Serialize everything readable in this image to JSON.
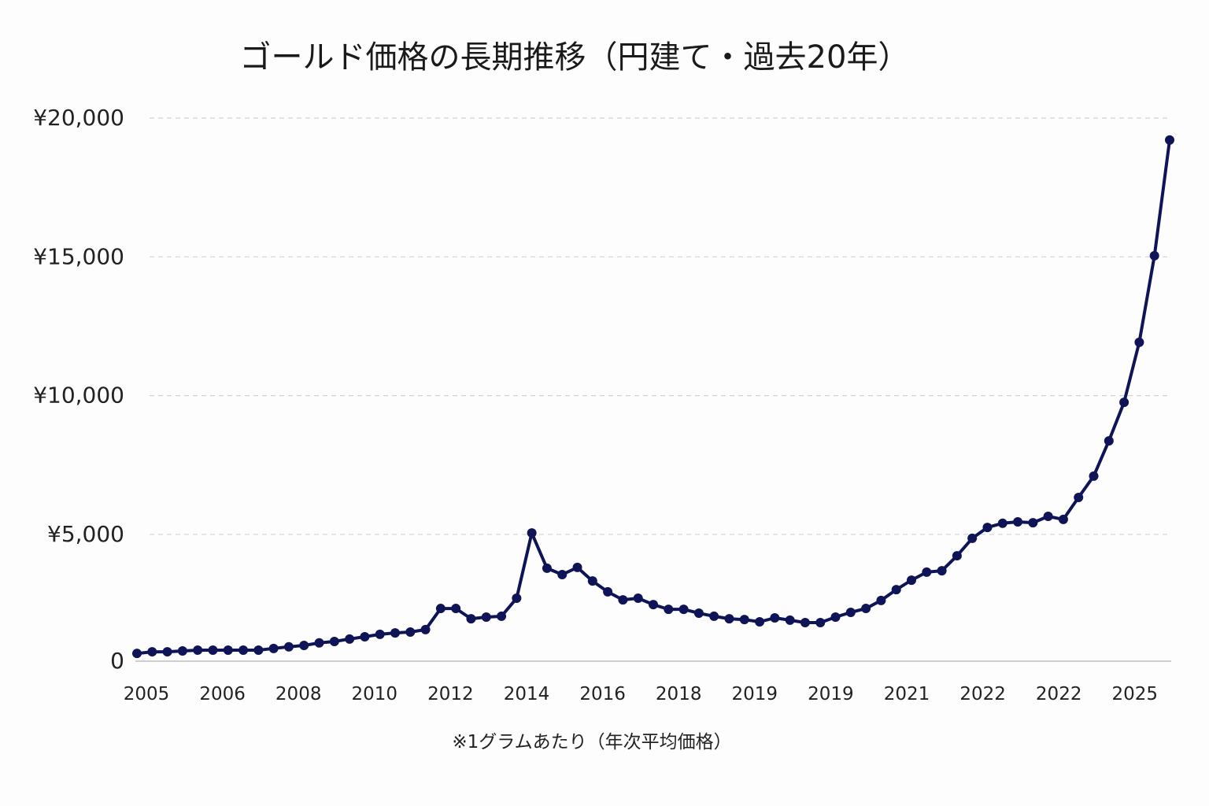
{
  "chart_data": {
    "type": "line",
    "title": "ゴールド価格の長期推移（円建て・過去20年）",
    "note": "※1グラムあたり（年次平均価格）",
    "xlabel": "",
    "ylabel": "",
    "ylim": [
      0,
      20000
    ],
    "grid": true,
    "y_ticks": [
      {
        "value": 0,
        "label": "0"
      },
      {
        "value": 5000,
        "label": "¥5,000"
      },
      {
        "value": 10000,
        "label": "¥10,000"
      },
      {
        "value": 15000,
        "label": "¥15,000"
      },
      {
        "value": 20000,
        "label": "¥20,000"
      }
    ],
    "x_tick_labels": [
      "2005",
      "2006",
      "2008",
      "2010",
      "2012",
      "2014",
      "2016",
      "2018",
      "2019",
      "2019",
      "2021",
      "2022",
      "2022",
      "2025"
    ],
    "line_color": "#0f1457",
    "grid_color": "#cfd3d8",
    "series": [
      {
        "name": "gold-price-jpy",
        "values": [
          710,
          770,
          770,
          800,
          830,
          830,
          830,
          830,
          830,
          890,
          950,
          1000,
          1090,
          1140,
          1230,
          1310,
          1400,
          1450,
          1480,
          1570,
          2330,
          2330,
          1960,
          2020,
          2050,
          2700,
          5050,
          3780,
          3550,
          3810,
          3320,
          2930,
          2640,
          2700,
          2470,
          2300,
          2300,
          2160,
          2050,
          1960,
          1930,
          1850,
          1990,
          1910,
          1820,
          1820,
          2020,
          2190,
          2330,
          2620,
          3010,
          3350,
          3640,
          3690,
          4230,
          4860,
          5250,
          5400,
          5450,
          5420,
          5650,
          5540,
          6330,
          7100,
          8370,
          9760,
          11920,
          15040,
          19210
        ]
      }
    ]
  }
}
